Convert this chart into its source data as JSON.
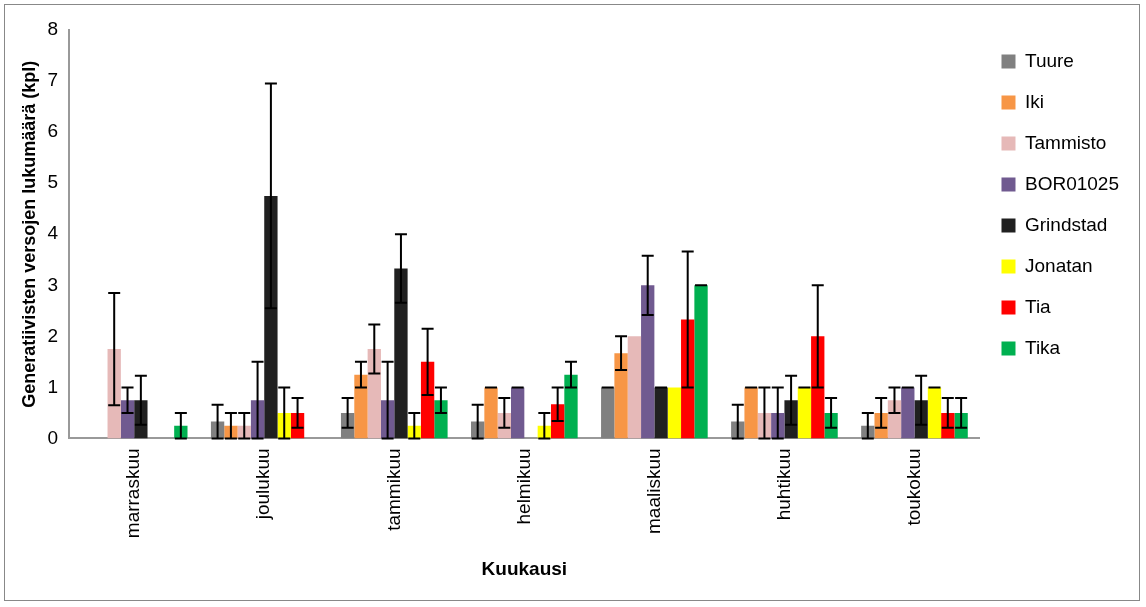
{
  "chart_data": {
    "type": "bar",
    "xlabel": "Kuukausi",
    "ylabel": "Generatiivisten versojen lukumäärä (kpl)",
    "categories": [
      "marraskuu",
      "joulukuu",
      "tammikuu",
      "helmikuu",
      "maaliskuu",
      "huhtikuu",
      "toukokuu"
    ],
    "ylim": [
      0,
      8
    ],
    "yticks": [
      0,
      1,
      2,
      3,
      4,
      5,
      6,
      7,
      8
    ],
    "grid": false,
    "legend": "right",
    "series": [
      {
        "name": "Tuure",
        "color": "#808080",
        "values": [
          0,
          0.33,
          0.5,
          0.33,
          1,
          0.33,
          0.25
        ],
        "errors": [
          null,
          0.33,
          0.29,
          0.33,
          0,
          0.33,
          0.25
        ]
      },
      {
        "name": "Iki",
        "color": "#f79646",
        "values": [
          0,
          0.25,
          1.25,
          1,
          1.67,
          1,
          0.5
        ],
        "errors": [
          null,
          0.25,
          0.25,
          0,
          0.33,
          0,
          0.29
        ]
      },
      {
        "name": "Tammisto",
        "color": "#e6b9b8",
        "values": [
          1.75,
          0.25,
          1.75,
          0.5,
          2,
          0.5,
          0.75
        ],
        "errors": [
          1.1,
          0.25,
          0.48,
          0.29,
          null,
          0.5,
          0.25
        ]
      },
      {
        "name": "BOR01025",
        "color": "#705a90",
        "values": [
          0.75,
          0.75,
          0.75,
          1,
          3,
          0.5,
          1
        ],
        "errors": [
          0.25,
          0.75,
          0.75,
          0,
          0.58,
          0.5,
          0
        ]
      },
      {
        "name": "Grindstad",
        "color": "#202020",
        "values": [
          0.75,
          4.75,
          3.33,
          0,
          1,
          0.75,
          0.75
        ],
        "errors": [
          0.48,
          2.2,
          0.67,
          null,
          0,
          0.48,
          0.48
        ]
      },
      {
        "name": "Jonatan",
        "color": "#ffff00",
        "values": [
          0,
          0.5,
          0.25,
          0.25,
          1,
          1,
          1
        ],
        "errors": [
          null,
          0.5,
          0.25,
          0.25,
          null,
          0,
          0
        ]
      },
      {
        "name": "Tia",
        "color": "#ff0000",
        "values": [
          0,
          0.5,
          1.5,
          0.67,
          2.33,
          2,
          0.5
        ],
        "errors": [
          null,
          0.29,
          0.65,
          0.33,
          1.33,
          1,
          0.29
        ]
      },
      {
        "name": "Tika",
        "color": "#00b050",
        "values": [
          0.25,
          0,
          0.75,
          1.25,
          3,
          0.5,
          0.5
        ],
        "errors": [
          0.25,
          null,
          0.25,
          0.25,
          0,
          0.29,
          0.29
        ]
      }
    ]
  }
}
